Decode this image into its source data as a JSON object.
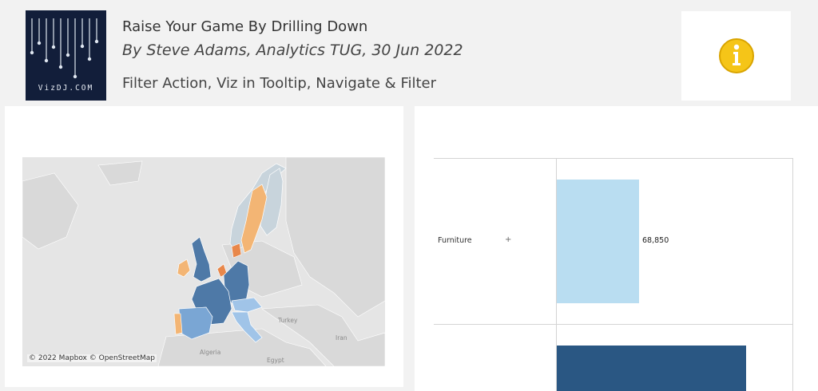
{
  "header": {
    "logo_text": "VizDJ.COM",
    "title": "Raise Your Game By Drilling Down",
    "subtitle": "By Steve Adams, Analytics TUG, 30 Jun 2022",
    "tagline": "Filter Action, Viz in Tooltip, Navigate & Filter",
    "info_icon": "info-icon"
  },
  "map": {
    "credit": "© 2022 Mapbox © OpenStreetMap",
    "labels": {
      "turkey": "Turkey",
      "iran": "Iran",
      "algeria": "Algeria",
      "egypt": "Egypt"
    },
    "colors": {
      "dark_blue": "#4e79a7",
      "mid_blue": "#7aa6d4",
      "light_blue": "#a0c4e8",
      "orange": "#f3b574",
      "dark_orange": "#e8874a",
      "grey_blue": "#c8d4dc"
    }
  },
  "chart_data": {
    "type": "bar",
    "orientation": "horizontal",
    "categories": [
      "Furniture",
      ""
    ],
    "values": [
      68850,
      null
    ],
    "data_labels": [
      "68,850",
      ""
    ],
    "expand_symbol": "+",
    "colors": [
      "#b9ddf1",
      "#2a5783"
    ]
  }
}
